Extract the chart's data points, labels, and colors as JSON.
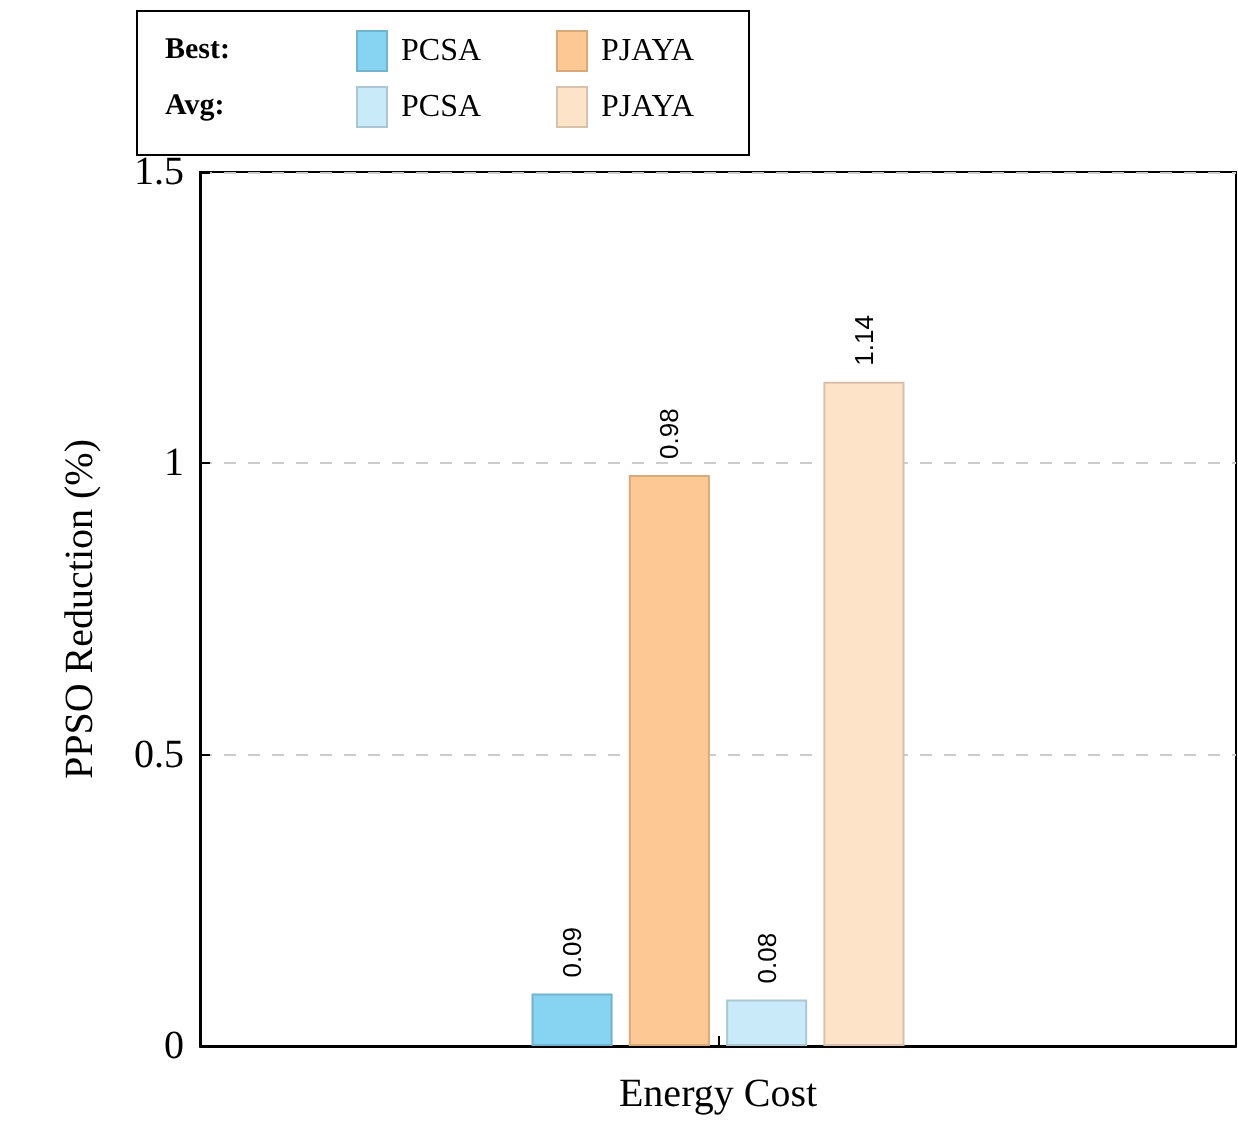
{
  "chart_data": {
    "type": "bar",
    "ylabel": "PPSO Reduction (%)",
    "categories": [
      "Energy Cost"
    ],
    "series": [
      {
        "name": "PCSA",
        "color": "#87d3f2",
        "values": [
          0.09
        ]
      },
      {
        "name": "PJAYA",
        "color": "#fdc894",
        "values": [
          0.98
        ]
      },
      {
        "name": "PCSA",
        "color": "#c9eaf8",
        "values": [
          0.08
        ]
      },
      {
        "name": "PJAYA",
        "color": "#fde3c8",
        "values": [
          1.14
        ]
      }
    ],
    "annotations": [
      "Best:",
      "Avg:"
    ],
    "ylim": [
      0,
      1.5
    ],
    "yticks": [
      0,
      0.5,
      1,
      1.5
    ],
    "grid": "y",
    "legend": "top left",
    "data_labels": true
  }
}
